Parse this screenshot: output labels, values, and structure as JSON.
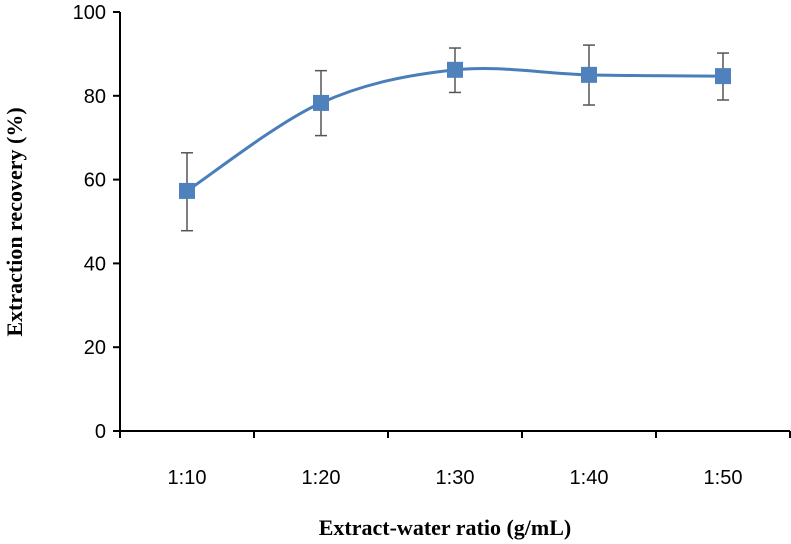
{
  "colors": {
    "series": "#4a7ebb",
    "marker": "#4f81bd",
    "axis": "#000000",
    "errorbar": "#555555"
  },
  "chart_data": {
    "type": "line",
    "title": "",
    "xlabel": "Extract-water ratio (g/mL)",
    "ylabel": "Extraction recovery (%)",
    "categories": [
      "1:10",
      "1:20",
      "1:30",
      "1:40",
      "1:50"
    ],
    "ylim": [
      0,
      100
    ],
    "yticks": [
      0,
      20,
      40,
      60,
      80,
      100
    ],
    "grid": false,
    "legend": "none",
    "smooth": true,
    "marker": "square",
    "series": [
      {
        "name": "Extraction recovery",
        "values": [
          57.3,
          78.3,
          86.2,
          85.0,
          84.7
        ],
        "error_low": [
          47.8,
          70.5,
          80.8,
          77.8,
          79.0
        ],
        "error_high": [
          66.4,
          86.0,
          91.4,
          92.1,
          90.2
        ]
      }
    ]
  }
}
